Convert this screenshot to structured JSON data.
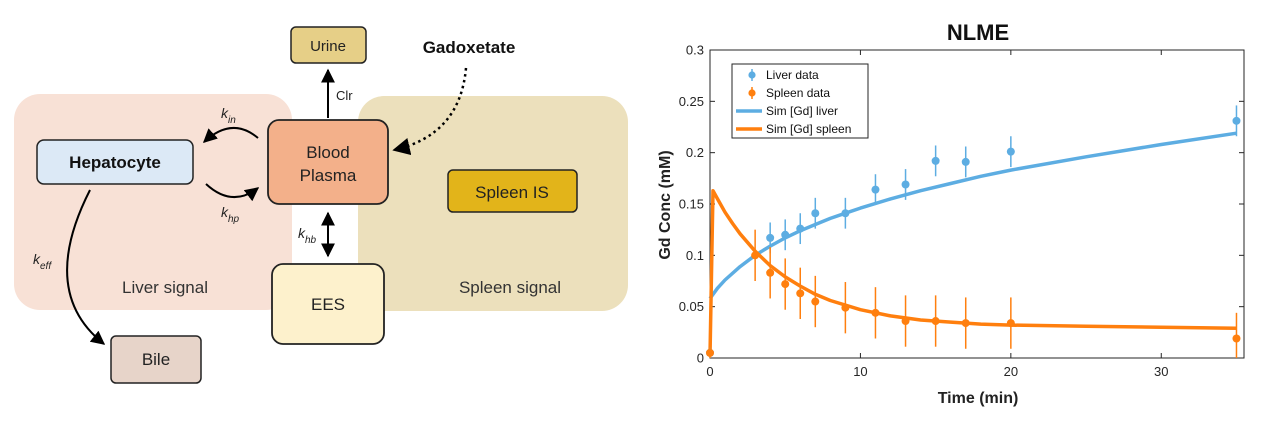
{
  "diagram": {
    "regions": {
      "liver": "Liver signal",
      "spleen": "Spleen signal"
    },
    "nodes": {
      "urine": "Urine",
      "gadoxetate": "Gadoxetate",
      "blood_line1": "Blood",
      "blood_line2": "Plasma",
      "hepatocyte": "Hepatocyte",
      "spleen_is": "Spleen IS",
      "ees": "EES",
      "bile": "Bile"
    },
    "edges": {
      "clr": "Clr",
      "k_in": {
        "base": "k",
        "sub": "in"
      },
      "k_hp": {
        "base": "k",
        "sub": "hp"
      },
      "k_hb": {
        "base": "k",
        "sub": "hb"
      },
      "k_eff": {
        "base": "k",
        "sub": "eff"
      }
    },
    "colors": {
      "liver_region": "#f8e1d6",
      "spleen_region": "#ece0bc",
      "urine": "#e6cf87",
      "blood": "#f3b08a",
      "hepatocyte": "#dce9f6",
      "spleen_is": "#e2b41a",
      "ees": "#fdf1cc",
      "bile": "#e7d4c9"
    }
  },
  "chart_data": {
    "type": "scatter",
    "title": "NLME",
    "xlabel": "Time (min)",
    "ylabel": "Gd Conc (mM)",
    "xlim": [
      0,
      35.5
    ],
    "ylim": [
      0,
      0.3
    ],
    "xticks": [
      "0",
      "10",
      "20",
      "30"
    ],
    "xtick_values": [
      0,
      10,
      20,
      30
    ],
    "yticks": [
      "0",
      "0.05",
      "0.1",
      "0.15",
      "0.2",
      "0.25",
      "0.3"
    ],
    "ytick_values": [
      0,
      0.05,
      0.1,
      0.15,
      0.2,
      0.25,
      0.3
    ],
    "legend": {
      "position": "top-left",
      "entries": [
        "Liver data",
        "Spleen data",
        "Sim [Gd] liver",
        "Sim [Gd] spleen"
      ]
    },
    "colors": {
      "liver": "#5dade2",
      "spleen": "#ff7f0e"
    },
    "series": [
      {
        "name": "Liver data",
        "kind": "errorbar",
        "x": [
          0,
          4,
          5,
          6,
          7,
          9,
          11,
          13,
          15,
          17,
          20,
          35
        ],
        "y": [
          0.005,
          0.117,
          0.12,
          0.126,
          0.141,
          0.141,
          0.164,
          0.169,
          0.192,
          0.191,
          0.201,
          0.231
        ],
        "err": [
          0.005,
          0.015,
          0.015,
          0.015,
          0.015,
          0.015,
          0.015,
          0.015,
          0.015,
          0.015,
          0.015,
          0.015
        ]
      },
      {
        "name": "Spleen data",
        "kind": "errorbar",
        "x": [
          0,
          3,
          4,
          5,
          6,
          7,
          9,
          11,
          13,
          15,
          17,
          20,
          35
        ],
        "y": [
          0.005,
          0.1,
          0.083,
          0.072,
          0.063,
          0.055,
          0.049,
          0.044,
          0.036,
          0.036,
          0.034,
          0.034,
          0.019
        ],
        "err": [
          0.005,
          0.025,
          0.025,
          0.025,
          0.025,
          0.025,
          0.025,
          0.025,
          0.025,
          0.025,
          0.025,
          0.025,
          0.025
        ]
      },
      {
        "name": "Sim [Gd] liver",
        "kind": "line",
        "x": [
          0,
          0.5,
          1,
          2,
          3,
          4,
          5,
          6,
          7,
          8,
          9,
          10,
          12,
          14,
          16,
          18,
          20,
          25,
          30,
          35
        ],
        "y": [
          0.058,
          0.068,
          0.076,
          0.089,
          0.1,
          0.109,
          0.117,
          0.124,
          0.13,
          0.136,
          0.141,
          0.146,
          0.155,
          0.163,
          0.17,
          0.177,
          0.183,
          0.196,
          0.208,
          0.219
        ]
      },
      {
        "name": "Sim [Gd] spleen",
        "kind": "line",
        "x": [
          0,
          0.2,
          0.5,
          1,
          1.5,
          2,
          3,
          4,
          5,
          6,
          7,
          8,
          10,
          12,
          14,
          16,
          18,
          20,
          25,
          30,
          35
        ],
        "y": [
          0.002,
          0.163,
          0.155,
          0.142,
          0.131,
          0.121,
          0.104,
          0.09,
          0.079,
          0.07,
          0.062,
          0.056,
          0.047,
          0.041,
          0.037,
          0.035,
          0.033,
          0.032,
          0.031,
          0.03,
          0.029
        ]
      }
    ]
  }
}
